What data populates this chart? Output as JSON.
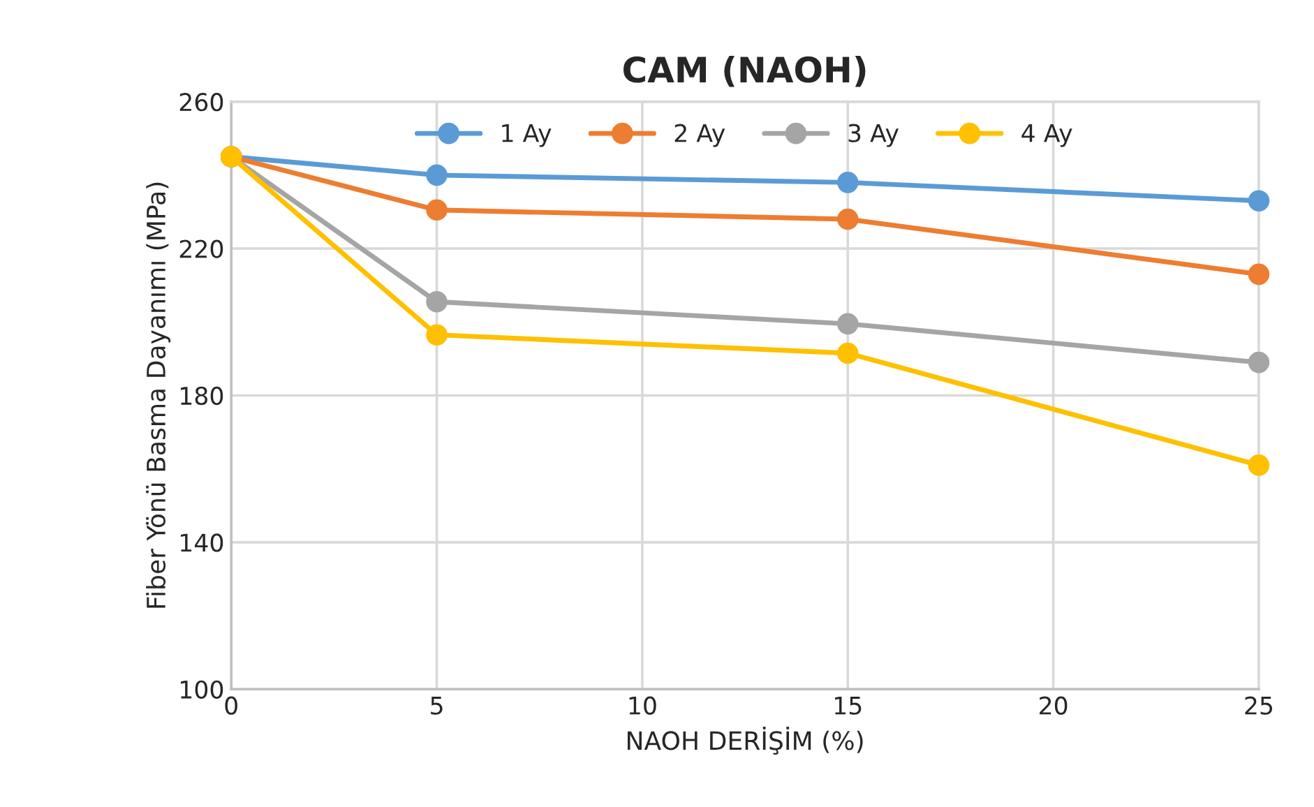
{
  "chart_data": {
    "type": "line",
    "title": "CAM (NAOH)",
    "xlabel": "NAOH DERİŞİM (%)",
    "ylabel": "Fiber Yönü Basma Dayanımı (MPa)",
    "x": [
      0,
      5,
      15,
      25
    ],
    "series": [
      {
        "name": "1 Ay",
        "color": "#5b9bd5",
        "values": [
          245,
          240,
          238,
          233
        ]
      },
      {
        "name": "2 Ay",
        "color": "#ed7d31",
        "values": [
          245,
          230.5,
          228,
          213
        ]
      },
      {
        "name": "3 Ay",
        "color": "#a5a5a5",
        "values": [
          245,
          205.5,
          199.5,
          189
        ]
      },
      {
        "name": "4 Ay",
        "color": "#ffc000",
        "values": [
          245,
          196.5,
          191.5,
          161
        ]
      }
    ],
    "xlim": [
      0,
      25
    ],
    "xticks": [
      0,
      5,
      10,
      15,
      20,
      25
    ],
    "ylim": [
      100,
      260
    ],
    "yticks": [
      100,
      140,
      180,
      220,
      260
    ],
    "grid": true,
    "legend": "top",
    "marker": "circle",
    "line_style": "solid"
  }
}
